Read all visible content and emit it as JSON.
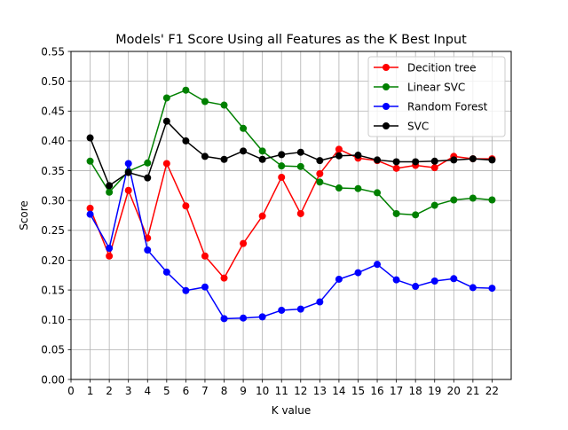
{
  "chart_data": {
    "type": "line",
    "title": "Models' F1 Score Using all Features as the K Best Input",
    "xlabel": "K value",
    "ylabel": "Score",
    "xlim": [
      0,
      23
    ],
    "ylim": [
      0.0,
      0.55
    ],
    "xticks": [
      0,
      1,
      2,
      3,
      4,
      5,
      6,
      7,
      8,
      9,
      10,
      11,
      12,
      13,
      14,
      15,
      16,
      17,
      18,
      19,
      20,
      21,
      22
    ],
    "yticks": [
      0.0,
      0.05,
      0.1,
      0.15,
      0.2,
      0.25,
      0.3,
      0.35,
      0.4,
      0.45,
      0.5,
      0.55
    ],
    "grid": true,
    "legend_position": "top-right",
    "x": [
      1,
      2,
      3,
      4,
      5,
      6,
      7,
      8,
      9,
      10,
      11,
      12,
      13,
      14,
      15,
      16,
      17,
      18,
      19,
      20,
      21,
      22
    ],
    "series": [
      {
        "name": "Decition tree",
        "color": "#ff0000",
        "values": [
          0.287,
          0.207,
          0.317,
          0.237,
          0.362,
          0.291,
          0.207,
          0.17,
          0.228,
          0.274,
          0.339,
          0.278,
          0.345,
          0.386,
          0.371,
          0.367,
          0.354,
          0.359,
          0.355,
          0.374,
          0.37,
          0.37
        ]
      },
      {
        "name": "Linear SVC",
        "color": "#008000",
        "values": [
          0.366,
          0.314,
          0.349,
          0.363,
          0.472,
          0.485,
          0.466,
          0.46,
          0.421,
          0.383,
          0.358,
          0.357,
          0.331,
          0.321,
          0.32,
          0.313,
          0.278,
          0.276,
          0.292,
          0.301,
          0.304,
          0.301
        ]
      },
      {
        "name": "Random Forest",
        "color": "#0000ff",
        "values": [
          0.277,
          0.22,
          0.362,
          0.217,
          0.18,
          0.149,
          0.155,
          0.102,
          0.103,
          0.105,
          0.116,
          0.118,
          0.13,
          0.168,
          0.179,
          0.193,
          0.167,
          0.156,
          0.165,
          0.169,
          0.154,
          0.153
        ]
      },
      {
        "name": "SVC",
        "color": "#000000",
        "values": [
          0.405,
          0.325,
          0.347,
          0.338,
          0.433,
          0.4,
          0.374,
          0.369,
          0.383,
          0.369,
          0.377,
          0.381,
          0.367,
          0.375,
          0.376,
          0.368,
          0.365,
          0.365,
          0.366,
          0.368,
          0.37,
          0.368
        ]
      }
    ]
  }
}
